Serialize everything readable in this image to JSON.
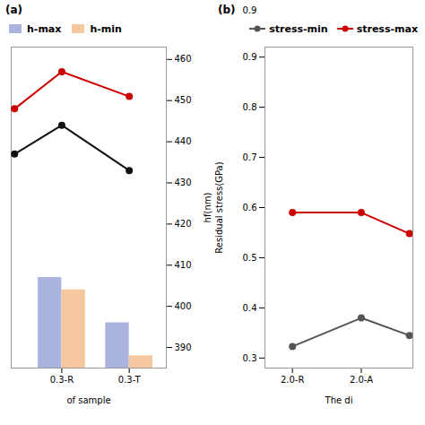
{
  "chart_data": [
    {
      "type": "bar",
      "categories": [
        "0.3-R",
        "0.3-T"
      ],
      "xlabel": "of sample",
      "ylabel": "hf(nm)",
      "annotations": [
        "(a)"
      ],
      "xlim": [
        -0.75,
        1.55
      ],
      "xticks": [
        {
          "value": 0,
          "label": "0.3-R"
        },
        {
          "value": 1,
          "label": "0.3-T"
        }
      ],
      "ylim": [
        385,
        463
      ],
      "yticks": [
        390,
        400,
        410,
        420,
        430,
        440,
        450,
        460
      ],
      "legend": "center left",
      "series": [
        {
          "name": "h-max",
          "type": "bar",
          "color": "#aab4de",
          "values": [
            407,
            396
          ]
        },
        {
          "name": "h-min",
          "type": "bar",
          "color": "#f5c8a0",
          "values": [
            404,
            388
          ]
        },
        {
          "type": "line",
          "marker": "circle",
          "color": "#cc0000",
          "x": [
            -0.7,
            0,
            1
          ],
          "values": [
            448,
            457,
            451
          ]
        },
        {
          "type": "line",
          "marker": "circle",
          "color": "#111111",
          "x": [
            -0.7,
            0,
            1
          ],
          "values": [
            437,
            444,
            433
          ]
        }
      ]
    },
    {
      "type": "line",
      "xlabel": "The di",
      "ylabel": "Residual stress(GPa)",
      "annotations": [
        "(b)",
        "0.9"
      ],
      "xlim": [
        -0.4,
        1.75
      ],
      "xticks": [
        {
          "value": 0,
          "label": "2.0-R"
        },
        {
          "value": 1,
          "label": "2.0-A"
        }
      ],
      "ylim": [
        0.28,
        0.92
      ],
      "yticks": [
        0.3,
        0.4,
        0.5,
        0.6,
        0.7,
        0.8,
        0.9
      ],
      "legend": "upper right",
      "series": [
        {
          "name": "stress-min",
          "type": "line",
          "marker": "circle",
          "color": "#555555",
          "x": [
            0,
            1,
            1.7
          ],
          "values": [
            0.323,
            0.38,
            0.345
          ]
        },
        {
          "name": "stress-max",
          "type": "line",
          "marker": "circle",
          "color": "#cc0000",
          "x": [
            0,
            1,
            1.7
          ],
          "values": [
            0.59,
            0.59,
            0.548
          ]
        }
      ]
    }
  ]
}
